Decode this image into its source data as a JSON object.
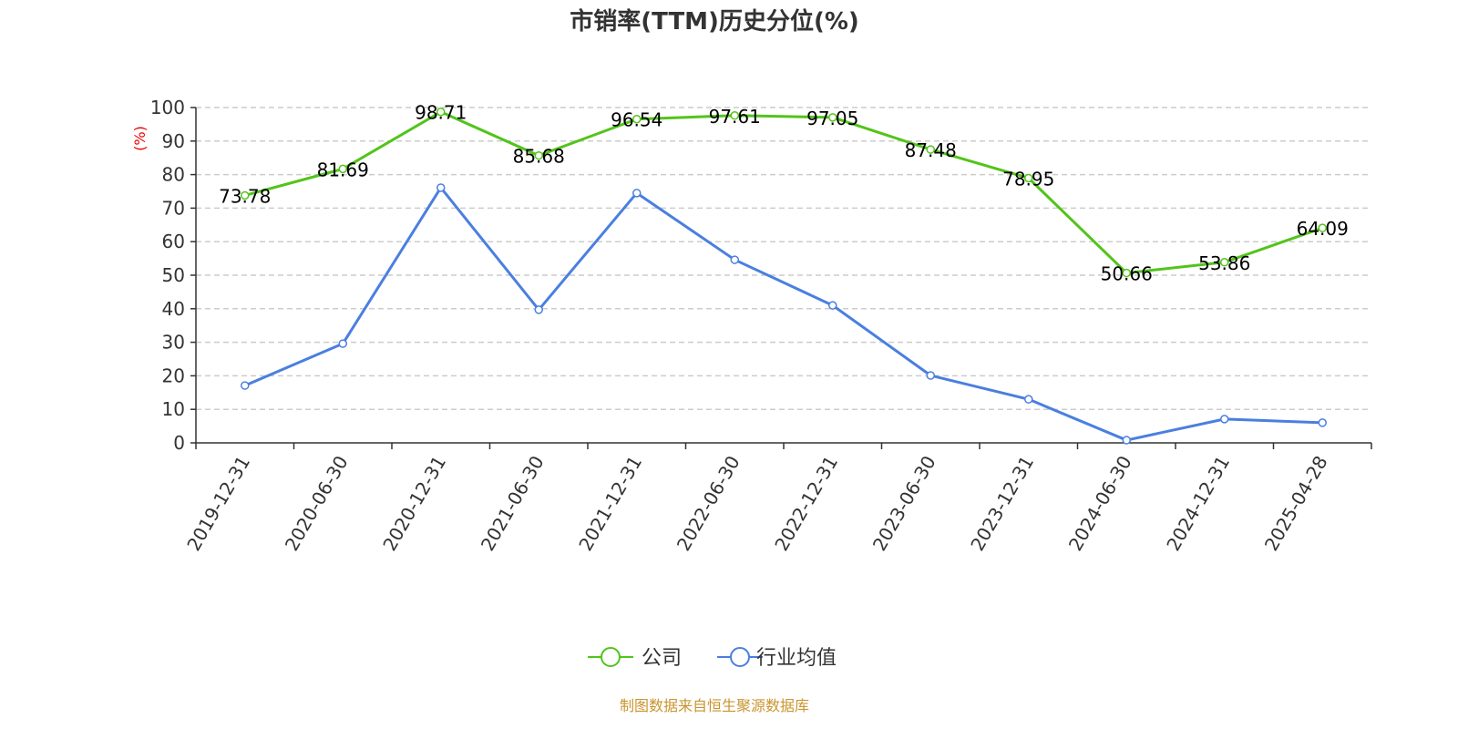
{
  "chart_data": {
    "type": "line",
    "title": "市销率(TTM)历史分位(%)",
    "ylabel": "(%)",
    "xlabel": "",
    "ylim": [
      0,
      100
    ],
    "yticks": [
      0,
      10,
      20,
      30,
      40,
      50,
      60,
      70,
      80,
      90,
      100
    ],
    "grid": true,
    "legend_position": "bottom-center",
    "categories": [
      "2019-12-31",
      "2020-06-30",
      "2020-12-31",
      "2021-06-30",
      "2021-12-31",
      "2022-06-30",
      "2022-12-31",
      "2023-06-30",
      "2023-12-31",
      "2024-06-30",
      "2024-12-31",
      "2025-04-28"
    ],
    "series": [
      {
        "name": "公司",
        "color": "#52c41a",
        "show_labels": true,
        "values": [
          73.78,
          81.69,
          98.71,
          85.68,
          96.54,
          97.61,
          97.05,
          87.48,
          78.95,
          50.66,
          53.86,
          64.09
        ]
      },
      {
        "name": "行业均值",
        "color": "#4a7fe0",
        "show_labels": false,
        "values": [
          17.1,
          29.6,
          76.1,
          39.7,
          74.5,
          54.6,
          41.0,
          20.1,
          13.0,
          0.8,
          7.1,
          6.0
        ]
      }
    ]
  },
  "footer": "制图数据来自恒生聚源数据库"
}
